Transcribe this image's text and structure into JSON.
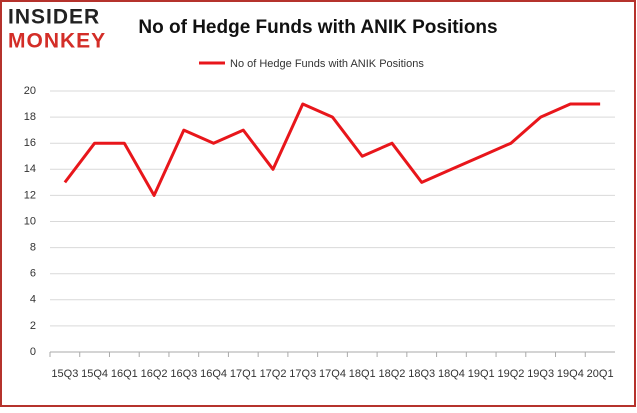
{
  "logo": {
    "line1": "INSIDER",
    "line2": "MONKEY"
  },
  "chart_data": {
    "type": "line",
    "title": "No of Hedge Funds with ANIK Positions",
    "categories": [
      "15Q3",
      "15Q4",
      "16Q1",
      "16Q2",
      "16Q3",
      "16Q4",
      "17Q1",
      "17Q2",
      "17Q3",
      "17Q4",
      "18Q1",
      "18Q2",
      "18Q3",
      "18Q4",
      "19Q1",
      "19Q2",
      "19Q3",
      "19Q4",
      "20Q1"
    ],
    "series": [
      {
        "name": "No of Hedge Funds with ANIK Positions",
        "color": "#e8161b",
        "values": [
          13,
          16,
          16,
          12,
          17,
          16,
          17,
          14,
          19,
          18,
          15,
          16,
          13,
          14,
          15,
          16,
          18,
          19,
          19
        ]
      }
    ],
    "ylim": [
      0,
      20
    ],
    "yticks": [
      0,
      2,
      4,
      6,
      8,
      10,
      12,
      14,
      16,
      18,
      20
    ],
    "grid": true,
    "legend": "top"
  }
}
